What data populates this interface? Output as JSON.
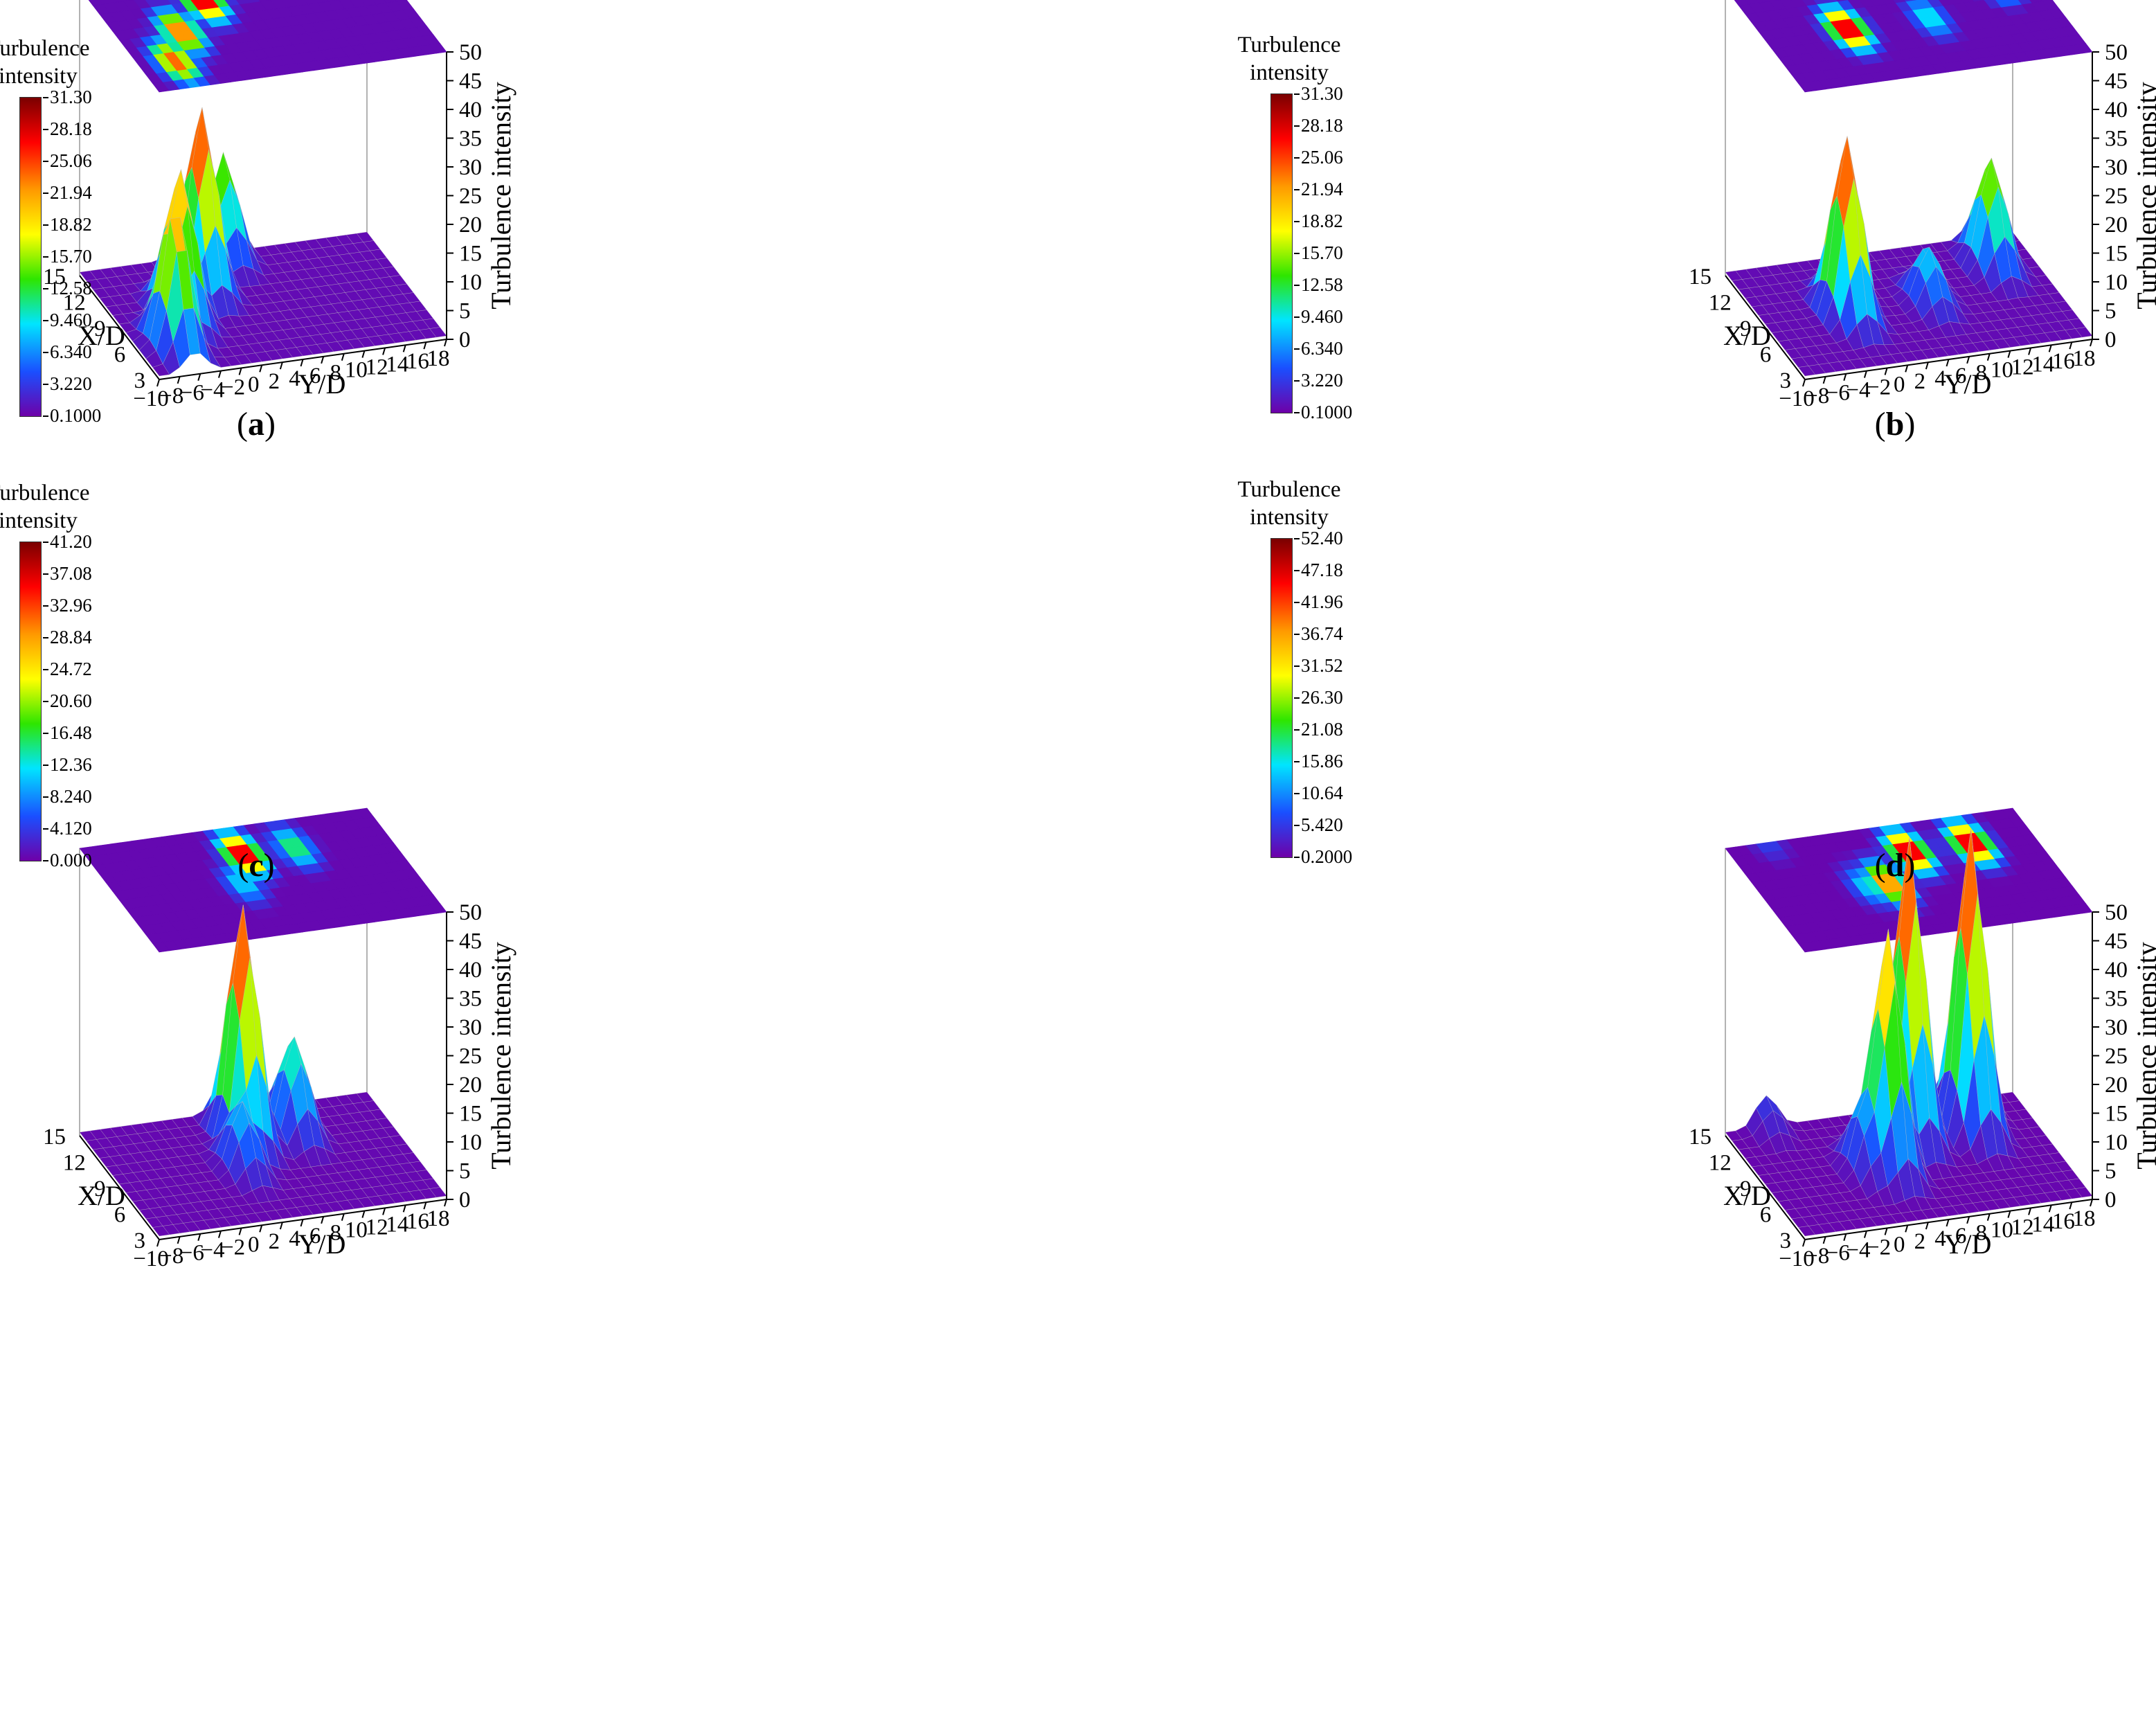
{
  "colors": {
    "surface_low": "#6e00a8",
    "surface_mid": "#1a4fff",
    "surface_green": "#2ee600",
    "surface_yellow": "#ffff00",
    "surface_high": "#ff0000",
    "surface_top": "#7a0000",
    "gridline": "#bdbdbd"
  },
  "chart_data": [
    {
      "type": "surface3d",
      "panel": "(a)",
      "panel_letter": "a",
      "xlabel": "Y/D",
      "ylabel": "X/D",
      "zlabel": "Turbulence intensity",
      "x_ticks": [
        "−10",
        "−8",
        "−6",
        "−4",
        "−2",
        "0",
        "2",
        "4",
        "6",
        "8",
        "10",
        "12",
        "14",
        "16",
        "18"
      ],
      "y_ticks": [
        "3",
        "6",
        "9",
        "12",
        "15"
      ],
      "z_ticks": [
        "0",
        "5",
        "10",
        "15",
        "20",
        "25",
        "30",
        "35",
        "40",
        "45",
        "50"
      ],
      "xlim": [
        -10,
        18
      ],
      "ylim": [
        3,
        15
      ],
      "zlim": [
        0,
        50
      ],
      "legend": {
        "title_line1": "Turbulence",
        "title_line2": "intensity",
        "levels": [
          "31.30",
          "28.18",
          "25.06",
          "21.94",
          "18.82",
          "15.70",
          "12.58",
          "9.460",
          "6.340",
          "3.220",
          "0.1000"
        ]
      },
      "peaks": [
        {
          "y_d": -6.5,
          "x_d": 6,
          "value": 25
        },
        {
          "y_d": -4,
          "x_d": 9,
          "value": 26
        },
        {
          "y_d": 0,
          "x_d": 12,
          "value": 31.3
        },
        {
          "y_d": 4,
          "x_d": 15,
          "value": 18
        }
      ]
    },
    {
      "type": "surface3d",
      "panel": "(b)",
      "panel_letter": "b",
      "xlabel": "Y/D",
      "ylabel": "X/D",
      "zlabel": "Turbulence intensity",
      "x_ticks": [
        "−10",
        "−8",
        "−6",
        "−4",
        "−2",
        "0",
        "2",
        "4",
        "6",
        "8",
        "10",
        "12",
        "14",
        "16",
        "18"
      ],
      "y_ticks": [
        "3",
        "6",
        "9",
        "12",
        "15"
      ],
      "z_ticks": [
        "0",
        "5",
        "10",
        "15",
        "20",
        "25",
        "30",
        "35",
        "40",
        "45",
        "50"
      ],
      "xlim": [
        -10,
        18
      ],
      "ylim": [
        3,
        15
      ],
      "zlim": [
        0,
        50
      ],
      "legend": {
        "title_line1": "Turbulence",
        "title_line2": "intensity",
        "levels": [
          "31.30",
          "28.18",
          "25.06",
          "21.94",
          "18.82",
          "15.70",
          "12.58",
          "9.460",
          "6.340",
          "3.220",
          "0.1000"
        ]
      },
      "peaks": [
        {
          "y_d": -2,
          "x_d": 9,
          "value": 31.3
        },
        {
          "y_d": 6,
          "x_d": 9,
          "value": 10
        },
        {
          "y_d": 14,
          "x_d": 12,
          "value": 19
        }
      ]
    },
    {
      "type": "surface3d",
      "panel": "(c)",
      "panel_letter": "c",
      "xlabel": "Y/D",
      "ylabel": "X/D",
      "zlabel": "Turbulence intensity",
      "x_ticks": [
        "−10",
        "−8",
        "−6",
        "−4",
        "−2",
        "0",
        "2",
        "4",
        "6",
        "8",
        "10",
        "12",
        "14",
        "16",
        "18"
      ],
      "y_ticks": [
        "3",
        "6",
        "9",
        "12",
        "15"
      ],
      "z_ticks": [
        "0",
        "5",
        "10",
        "15",
        "20",
        "25",
        "30",
        "35",
        "40",
        "45",
        "50"
      ],
      "xlim": [
        -10,
        18
      ],
      "ylim": [
        3,
        15
      ],
      "zlim": [
        0,
        50
      ],
      "legend": {
        "title_line1": "Turbulence",
        "title_line2": "intensity",
        "levels": [
          "41.20",
          "37.08",
          "32.96",
          "28.84",
          "24.72",
          "20.60",
          "16.48",
          "12.36",
          "8.240",
          "4.120",
          "0.000"
        ]
      },
      "peaks": [
        {
          "y_d": 4,
          "x_d": 12,
          "value": 41.2
        },
        {
          "y_d": 9,
          "x_d": 12,
          "value": 17
        },
        {
          "y_d": 2,
          "x_d": 9,
          "value": 12
        }
      ]
    },
    {
      "type": "surface3d",
      "panel": "(d)",
      "panel_letter": "d",
      "xlabel": "Y/D",
      "ylabel": "X/D",
      "zlabel": "Turbulence intensity",
      "x_ticks": [
        "−10",
        "−8",
        "−6",
        "−4",
        "−2",
        "0",
        "2",
        "4",
        "6",
        "8",
        "10",
        "12",
        "14",
        "16",
        "18"
      ],
      "y_ticks": [
        "3",
        "6",
        "9",
        "12",
        "15"
      ],
      "z_ticks": [
        "0",
        "5",
        "10",
        "15",
        "20",
        "25",
        "30",
        "35",
        "40",
        "45",
        "50"
      ],
      "xlim": [
        -10,
        18
      ],
      "ylim": [
        3,
        15
      ],
      "zlim": [
        0,
        50
      ],
      "legend": {
        "title_line1": "Turbulence",
        "title_line2": "intensity",
        "levels": [
          "52.40",
          "47.18",
          "41.96",
          "36.74",
          "31.52",
          "26.30",
          "21.08",
          "15.86",
          "10.64",
          "5.420",
          "0.2000"
        ]
      },
      "peaks": [
        {
          "y_d": 2,
          "x_d": 9,
          "value": 42
        },
        {
          "y_d": 6,
          "x_d": 12,
          "value": 52.4
        },
        {
          "y_d": 12,
          "x_d": 12,
          "value": 52.4
        },
        {
          "y_d": 0,
          "x_d": 9,
          "value": 15
        },
        {
          "y_d": -6,
          "x_d": 15,
          "value": 6
        }
      ]
    }
  ]
}
